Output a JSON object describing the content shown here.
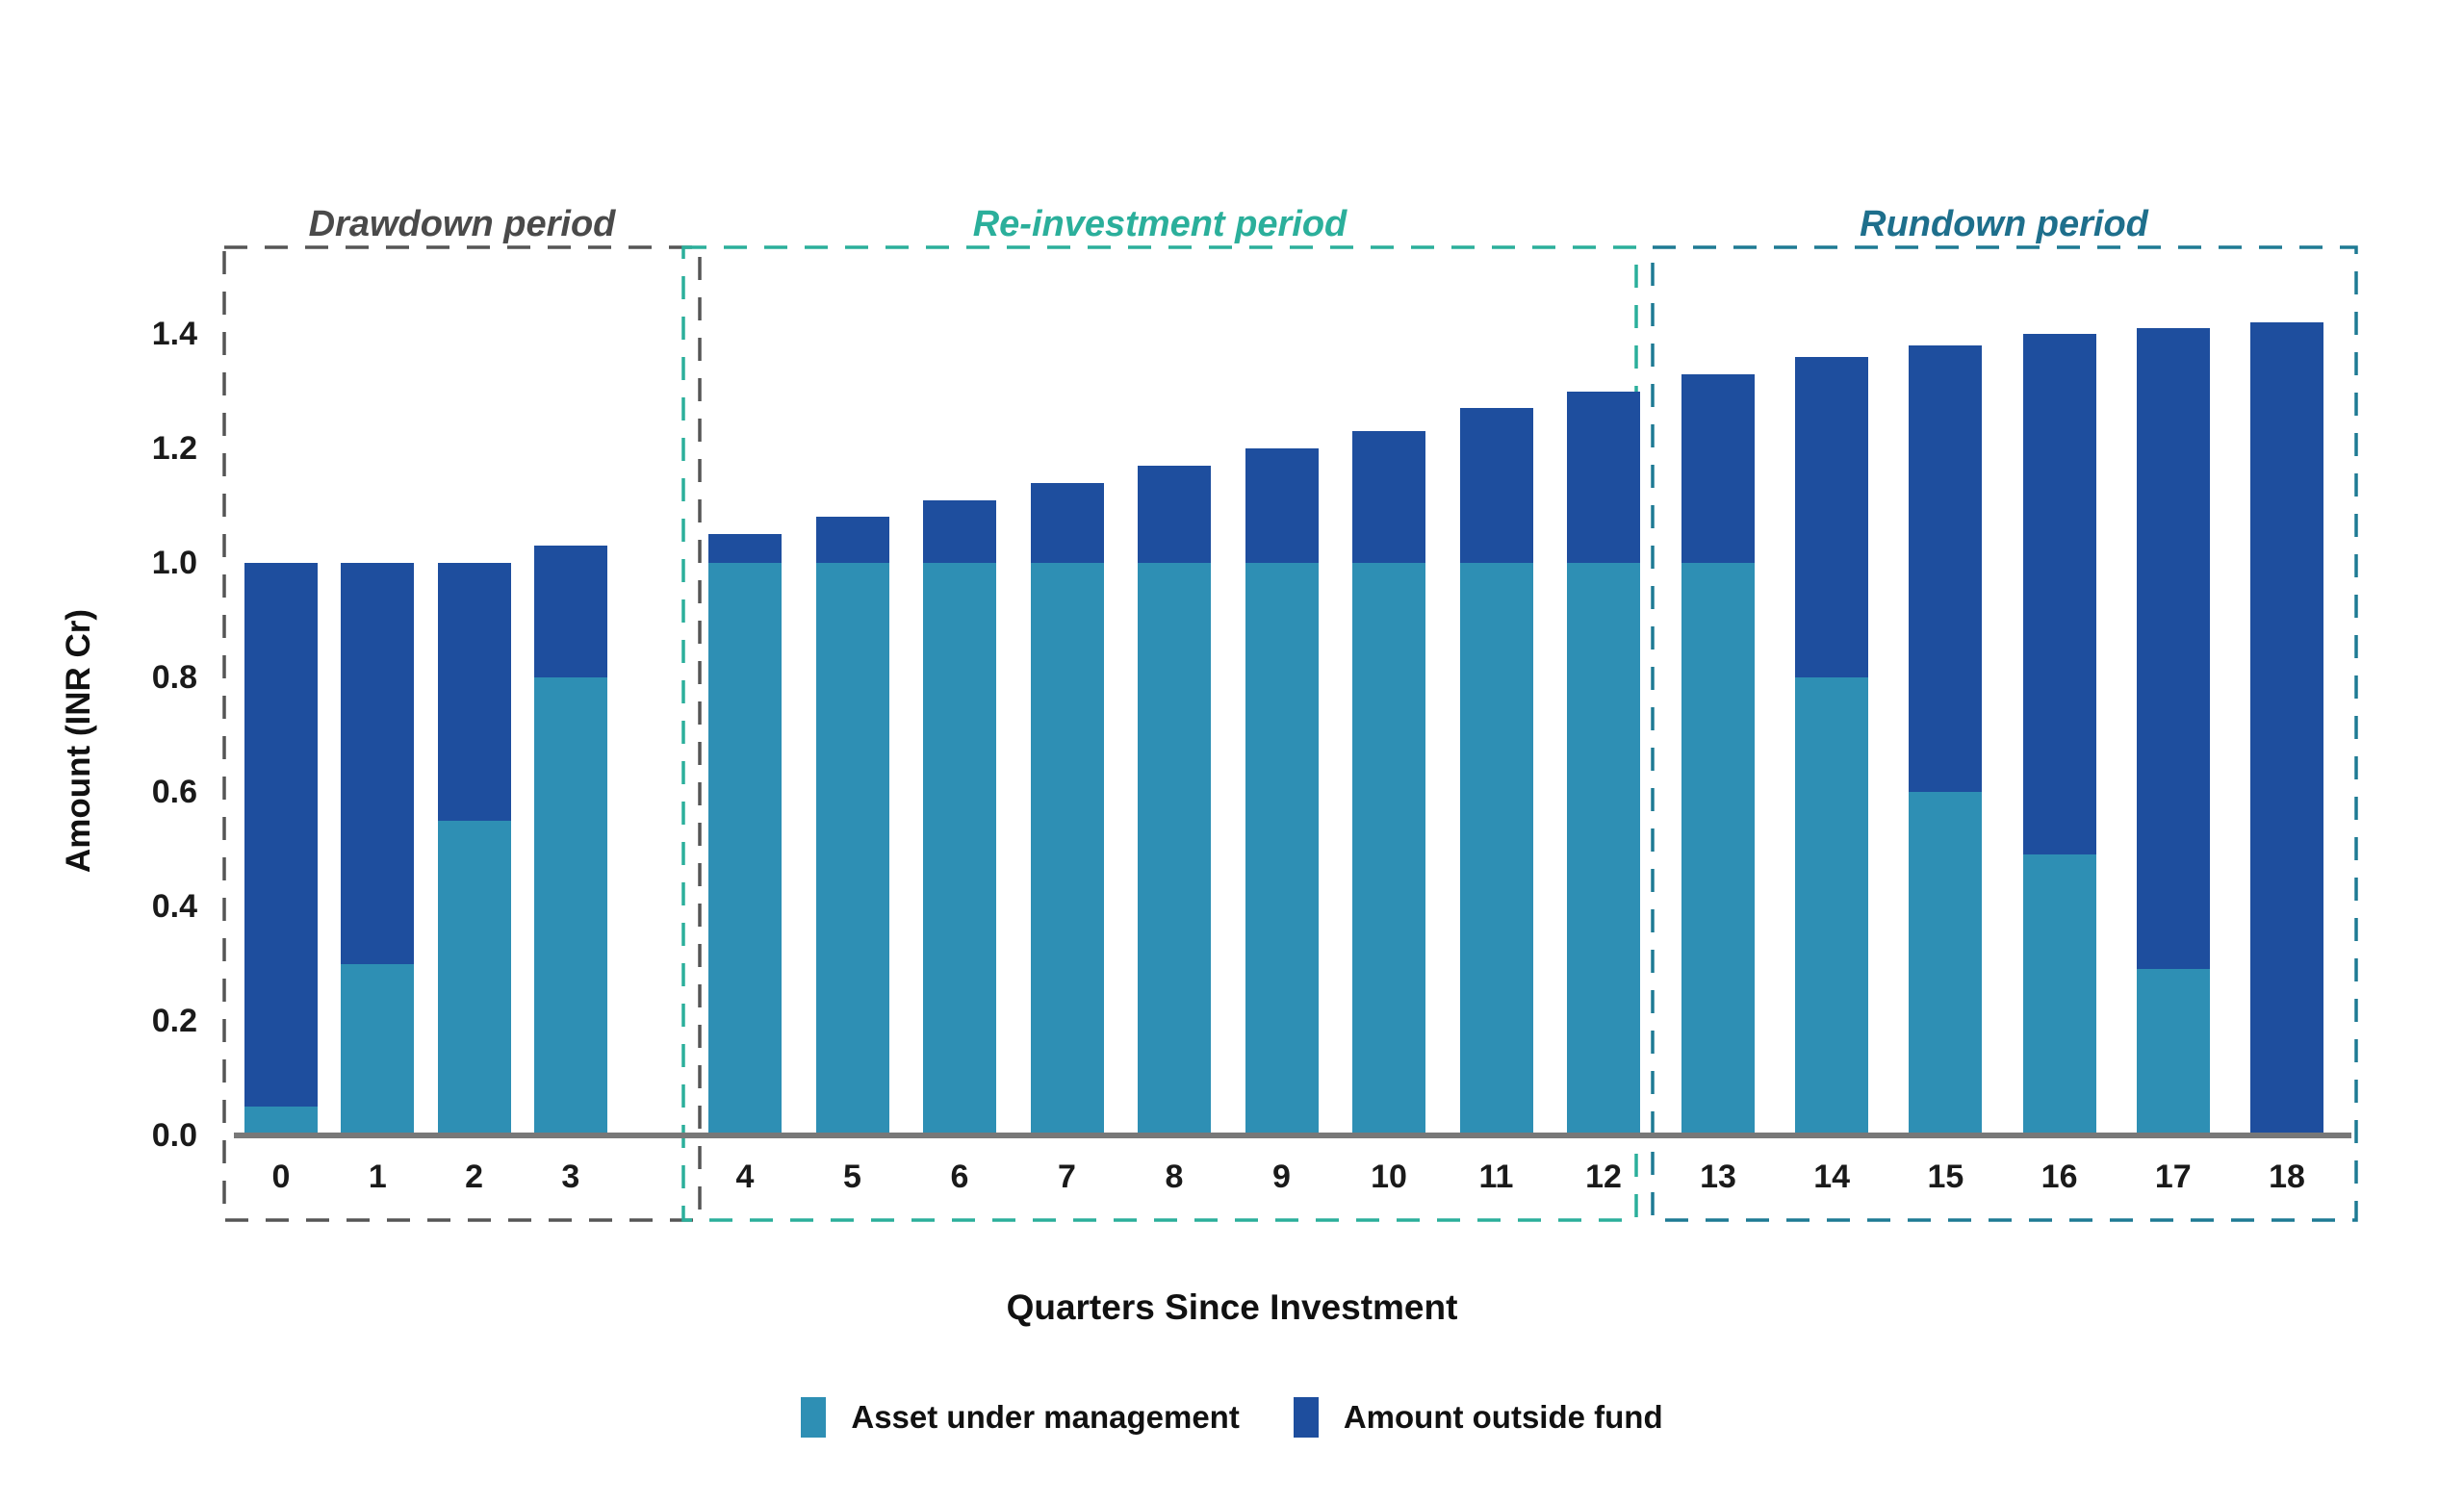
{
  "y_axis": {
    "label": "Amount (INR Cr)",
    "ticks": [
      "0.0",
      "0.2",
      "0.4",
      "0.6",
      "0.8",
      "1.0",
      "1.2",
      "1.4"
    ],
    "tick_values": [
      0.0,
      0.2,
      0.4,
      0.6,
      0.8,
      1.0,
      1.2,
      1.4
    ]
  },
  "x_axis": {
    "label": "Quarters Since Investment",
    "ticks": [
      "0",
      "1",
      "2",
      "3",
      "4",
      "5",
      "6",
      "7",
      "8",
      "9",
      "10",
      "11",
      "12",
      "13",
      "14",
      "15",
      "16",
      "17",
      "18"
    ]
  },
  "legend": {
    "items": [
      {
        "label": "Asset under management",
        "color": "#2E8FB4"
      },
      {
        "label": "Amount outside fund",
        "color": "#1E4E9E"
      }
    ]
  },
  "periods": [
    {
      "label": "Drawdown period",
      "quarters": [
        0,
        3
      ],
      "color": "#4A4A4A",
      "box_color": "#555555"
    },
    {
      "label": "Re-investment period",
      "quarters": [
        4,
        12
      ],
      "color": "#2BAF9B",
      "box_color": "#2BAF9B"
    },
    {
      "label": "Rundown period",
      "quarters": [
        13,
        18
      ],
      "color": "#1E6F8C",
      "box_color": "#1E7A94"
    }
  ],
  "chart_data": {
    "type": "bar",
    "stacked": true,
    "title": "",
    "xlabel": "Quarters Since Investment",
    "ylabel": "Amount (INR Cr)",
    "categories": [
      0,
      1,
      2,
      3,
      4,
      5,
      6,
      7,
      8,
      9,
      10,
      11,
      12,
      13,
      14,
      15,
      16,
      17,
      18
    ],
    "series": [
      {
        "name": "Asset under management",
        "color": "#2E8FB4",
        "values": [
          0.05,
          0.3,
          0.55,
          0.8,
          1.0,
          1.0,
          1.0,
          1.0,
          1.0,
          1.0,
          1.0,
          1.0,
          1.0,
          1.0,
          0.8,
          0.6,
          0.49,
          0.29,
          0.0
        ]
      },
      {
        "name": "Amount outside fund",
        "color": "#1E4E9E",
        "values": [
          0.95,
          0.7,
          0.45,
          0.23,
          0.05,
          0.08,
          0.11,
          0.14,
          0.17,
          0.2,
          0.23,
          0.27,
          0.3,
          0.33,
          0.56,
          0.78,
          0.91,
          1.12,
          1.42
        ]
      }
    ],
    "totals": [
      1.0,
      1.0,
      1.0,
      1.03,
      1.05,
      1.08,
      1.11,
      1.14,
      1.17,
      1.2,
      1.23,
      1.27,
      1.3,
      1.33,
      1.36,
      1.38,
      1.4,
      1.41,
      1.42
    ],
    "ylim": [
      0,
      1.5
    ],
    "grid": false,
    "legend_position": "bottom"
  }
}
